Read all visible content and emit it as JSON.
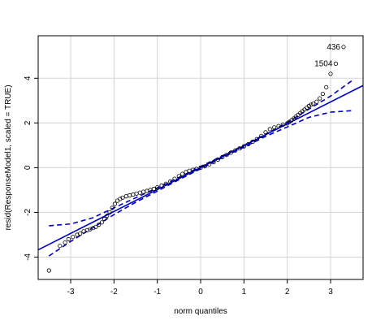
{
  "chart_data": {
    "type": "scatter",
    "title": "",
    "xlabel": "norm quantiles",
    "ylabel": "resid(ResponseModel1, scaled = TRUE)",
    "xlim": [
      -3.75,
      3.75
    ],
    "ylim": [
      -5.0,
      5.9
    ],
    "x_ticks": [
      -3,
      -2,
      -1,
      0,
      1,
      2,
      3
    ],
    "y_ticks": [
      -4,
      -2,
      0,
      2,
      4
    ],
    "x_tick_labels": [
      "-3",
      "-2",
      "-1",
      "0",
      "1",
      "2",
      "3"
    ],
    "y_tick_labels": [
      "-4",
      "-2",
      "0",
      "2",
      "4"
    ],
    "grid": true,
    "colors": {
      "points": "#000000",
      "reference_line": "#0000cc",
      "envelope": "#0000cc",
      "grid": "#d3d3d3"
    },
    "reference_line": {
      "intercept": 0.0,
      "slope": 0.98
    },
    "envelope": {
      "x": [
        -3.5,
        -3.0,
        -2.5,
        -2.0,
        -1.5,
        -1.0,
        -0.5,
        0.0,
        0.5,
        1.0,
        1.5,
        2.0,
        2.5,
        3.0,
        3.5
      ],
      "upper": [
        -2.6,
        -2.52,
        -2.25,
        -1.8,
        -1.35,
        -0.9,
        -0.44,
        0.05,
        0.53,
        1.0,
        1.5,
        2.02,
        2.62,
        3.2,
        3.9
      ],
      "lower": [
        -3.95,
        -3.3,
        -2.7,
        -2.1,
        -1.55,
        -1.05,
        -0.54,
        -0.05,
        0.45,
        0.92,
        1.4,
        1.82,
        2.25,
        2.48,
        2.55
      ]
    },
    "points": {
      "x": [
        -3.5,
        -3.25,
        -3.13,
        -3.05,
        -2.95,
        -2.85,
        -2.78,
        -2.7,
        -2.62,
        -2.55,
        -2.48,
        -2.42,
        -2.35,
        -2.28,
        -2.22,
        -2.16,
        -2.1,
        -2.04,
        -1.98,
        -1.92,
        -1.86,
        -1.8,
        -1.72,
        -1.64,
        -1.56,
        -1.48,
        -1.4,
        -1.32,
        -1.24,
        -1.16,
        -1.08,
        -1.0,
        -0.9,
        -0.8,
        -0.7,
        -0.6,
        -0.5,
        -0.42,
        -0.34,
        -0.26,
        -0.18,
        -0.1,
        0.0,
        0.1,
        0.2,
        0.3,
        0.4,
        0.5,
        0.6,
        0.7,
        0.8,
        0.9,
        1.0,
        1.1,
        1.2,
        1.3,
        1.4,
        1.5,
        1.6,
        1.7,
        1.8,
        1.9,
        2.0,
        2.05,
        2.1,
        2.15,
        2.2,
        2.25,
        2.3,
        2.35,
        2.4,
        2.45,
        2.5,
        2.55,
        2.6,
        2.68,
        2.75,
        2.82,
        2.9,
        3.0,
        3.12,
        3.3
      ],
      "y": [
        -4.6,
        -3.5,
        -3.35,
        -3.2,
        -3.1,
        -3.0,
        -2.95,
        -2.85,
        -2.8,
        -2.75,
        -2.7,
        -2.65,
        -2.55,
        -2.45,
        -2.3,
        -2.15,
        -2.0,
        -1.8,
        -1.62,
        -1.48,
        -1.4,
        -1.34,
        -1.28,
        -1.24,
        -1.2,
        -1.16,
        -1.12,
        -1.08,
        -1.04,
        -1.0,
        -0.95,
        -0.88,
        -0.8,
        -0.72,
        -0.62,
        -0.5,
        -0.38,
        -0.28,
        -0.2,
        -0.14,
        -0.1,
        -0.06,
        0.0,
        0.06,
        0.15,
        0.25,
        0.36,
        0.47,
        0.57,
        0.67,
        0.77,
        0.86,
        0.95,
        1.05,
        1.16,
        1.28,
        1.42,
        1.58,
        1.72,
        1.8,
        1.86,
        1.92,
        1.98,
        2.05,
        2.12,
        2.2,
        2.28,
        2.36,
        2.44,
        2.52,
        2.6,
        2.68,
        2.76,
        2.82,
        2.86,
        2.95,
        3.1,
        3.3,
        3.6,
        4.2,
        4.65,
        5.4
      ]
    },
    "annotations": [
      {
        "text": "436",
        "x": 3.3,
        "y": 5.4
      },
      {
        "text": "1504",
        "x": 3.12,
        "y": 4.65
      }
    ]
  }
}
